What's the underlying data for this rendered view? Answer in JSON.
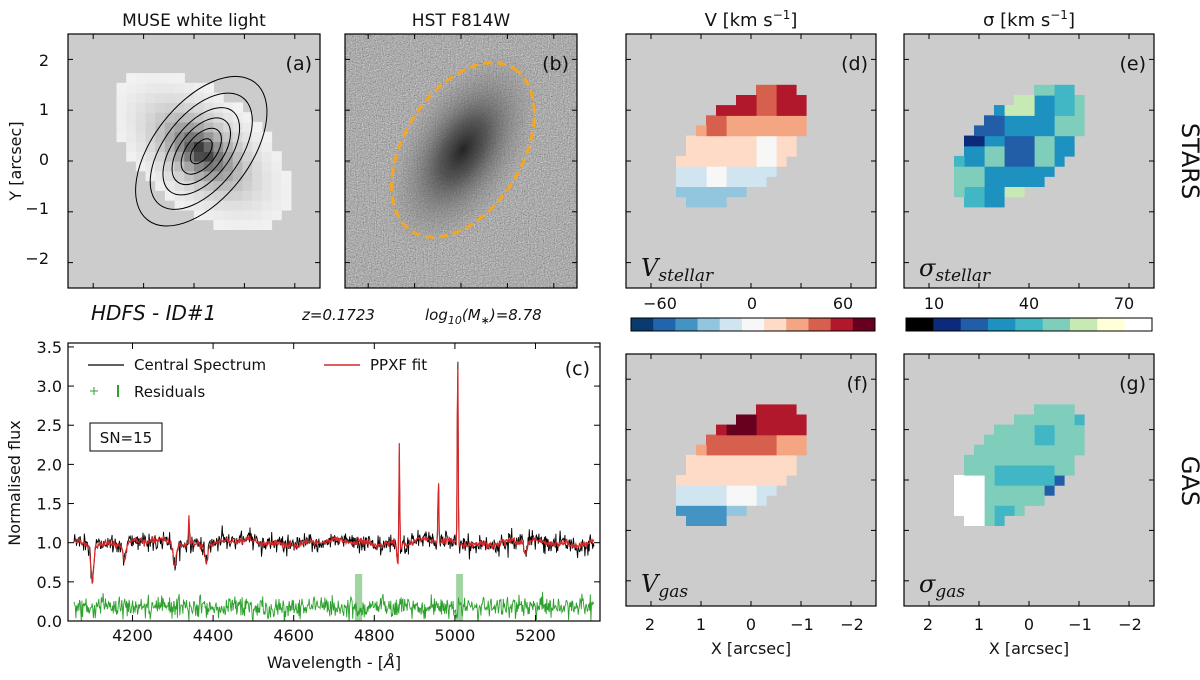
{
  "figure": {
    "panels": {
      "a": {
        "title": "MUSE white light",
        "label": "(a)",
        "ylabel": "Y [arcsec]",
        "yticks": [
          "2",
          "1",
          "0",
          "−1",
          "−2"
        ]
      },
      "b": {
        "title": "HST F814W",
        "label": "(b)"
      },
      "d": {
        "title": "V [km s",
        "title_sup": "−1",
        "title_end": "]",
        "label": "(d)",
        "annotation": "V",
        "annotation_sub": "stellar"
      },
      "e": {
        "title": "σ [km s",
        "title_sup": "−1",
        "title_end": "]",
        "label": "(e)",
        "annotation": "σ",
        "annotation_sub": "stellar"
      },
      "f": {
        "label": "(f)",
        "annotation": "V",
        "annotation_sub": "gas"
      },
      "g": {
        "label": "(g)",
        "annotation": "σ",
        "annotation_sub": "gas"
      }
    },
    "row_labels": {
      "top": "STARS",
      "bottom": "GAS"
    },
    "info": {
      "object": "HDFS - ID#1",
      "redshift": "z=0.1723",
      "mass_prefix": "log",
      "mass_sub": "10",
      "mass_mid": "(M",
      "mass_star": "∗",
      "mass_end": ")=8.78"
    },
    "velocity_colorbar": {
      "ticks": [
        "−60",
        "0",
        "60"
      ],
      "colors": [
        "#0b3a6f",
        "#2166ac",
        "#4393c3",
        "#92c5de",
        "#d1e5f0",
        "#f7f7f7",
        "#fddbc7",
        "#f4a582",
        "#d6604d",
        "#b2182b",
        "#67001f"
      ]
    },
    "sigma_colorbar": {
      "ticks": [
        "10",
        "40",
        "70"
      ],
      "colors": [
        "#000000",
        "#0c2a7a",
        "#225ea8",
        "#1d91c0",
        "#41b6c4",
        "#7fcdbb",
        "#c7e9b4",
        "#ffffd9",
        "#ffffff"
      ]
    },
    "map_xaxis": {
      "label": "X [arcsec]",
      "ticks": [
        "2",
        "1",
        "0",
        "−1",
        "−2"
      ]
    },
    "snr_label": "SN=15"
  },
  "chart_data": [
    {
      "type": "line",
      "panel": "c",
      "label": "(c)",
      "xlabel": "Wavelength - [",
      "xlabel_unit": "Å",
      "xlabel_end": "]",
      "ylabel": "Normalised flux",
      "xlim": [
        4040,
        5360
      ],
      "ylim": [
        0.0,
        3.55
      ],
      "xticks": [
        4200,
        4400,
        4600,
        4800,
        5000,
        5200
      ],
      "yticks": [
        0.0,
        0.5,
        1.0,
        1.5,
        2.0,
        2.5,
        3.0,
        3.5
      ],
      "ytick_labels": [
        "0.0",
        "0.5",
        "1.0",
        "1.5",
        "2.0",
        "2.5",
        "3.0",
        "3.5"
      ],
      "legend": {
        "spectrum": "Central Spectrum",
        "fit": "PPXF fit",
        "residuals": "Residuals"
      },
      "series": [
        {
          "name": "Central Spectrum",
          "color": "#000000",
          "baseline": 1.0,
          "noise": 0.06
        },
        {
          "name": "PPXF fit",
          "color": "#d62728",
          "baseline": 1.0
        },
        {
          "name": "Residuals",
          "color": "#2ca02c",
          "baseline": 0.18,
          "noise": 0.07
        }
      ],
      "emission_lines": [
        {
          "x": 4340,
          "peak": 1.33
        },
        {
          "x": 4862,
          "peak": 2.55
        },
        {
          "x": 4959,
          "peak": 1.82
        },
        {
          "x": 5007,
          "peak": 3.45
        }
      ],
      "absorption_lines": [
        {
          "x": 4100,
          "depth": 0.55
        },
        {
          "x": 4180,
          "depth": 0.78
        },
        {
          "x": 4305,
          "depth": 0.72
        },
        {
          "x": 4383,
          "depth": 0.8
        },
        {
          "x": 4860,
          "depth": 0.68
        },
        {
          "x": 5175,
          "depth": 0.85
        }
      ],
      "masked_regions": [
        [
          4752,
          4770
        ],
        [
          5003,
          5020
        ]
      ]
    },
    {
      "type": "contour",
      "panel": "a",
      "axis_range": [
        -2.6,
        2.6
      ],
      "center": [
        0.15,
        0.2
      ],
      "position_angle_deg": 38,
      "axis_ratio": 0.55,
      "contour_semimajor_arcsec": [
        0.3,
        0.55,
        0.8,
        1.05,
        1.4,
        1.8
      ]
    },
    {
      "type": "heatmap",
      "panel": "d-g",
      "description": "kinematic maps on ~0.2 arcsec spaxel grid",
      "d_velocity_gradient_kms_per_arcsec": 35,
      "f_velocity_gradient_kms_per_arcsec": 45
    }
  ]
}
